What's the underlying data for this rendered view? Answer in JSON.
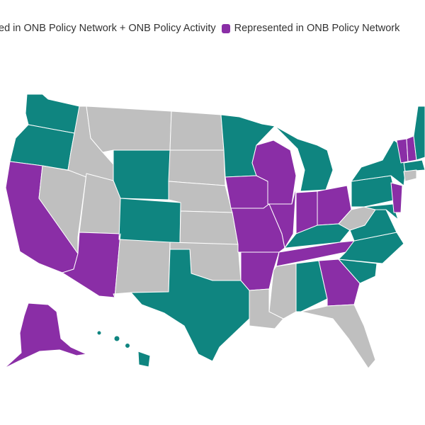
{
  "legend": {
    "items": [
      {
        "label": "ted in ONB Policy Network + ONB Policy Activity",
        "color": "#0f8580",
        "swatch_visible": false
      },
      {
        "label": "Represented in ONB Policy Network",
        "color": "#8a2ea6",
        "swatch_visible": true
      }
    ]
  },
  "colors": {
    "network_and_activity": "#0f8580",
    "network_only": "#8a2ea6",
    "not_represented": "#bfbfbf",
    "highlight_outline": "#f26a1b",
    "state_border": "#ffffff"
  },
  "states": {
    "network_and_activity": [
      "Washington",
      "Oregon",
      "Wyoming",
      "Colorado",
      "Texas",
      "Minnesota",
      "Michigan",
      "Kentucky",
      "Alabama",
      "North Carolina",
      "South Carolina",
      "Virginia",
      "Pennsylvania",
      "New York",
      "Massachusetts",
      "Maine",
      "Maryland",
      "Hawaii"
    ],
    "network_only": [
      "California",
      "Arizona",
      "Iowa",
      "Missouri",
      "Arkansas",
      "Wisconsin",
      "Illinois",
      "Indiana",
      "Ohio",
      "Tennessee",
      "Georgia",
      "New Jersey",
      "Vermont",
      "New Hampshire",
      "Alaska"
    ],
    "highlighted_outline": [
      "Washington",
      "Oregon",
      "California",
      "Colorado",
      "Texas",
      "Minnesota",
      "Michigan",
      "Missouri",
      "Tennessee",
      "Alabama",
      "Virginia",
      "Maine",
      "Alaska"
    ]
  }
}
